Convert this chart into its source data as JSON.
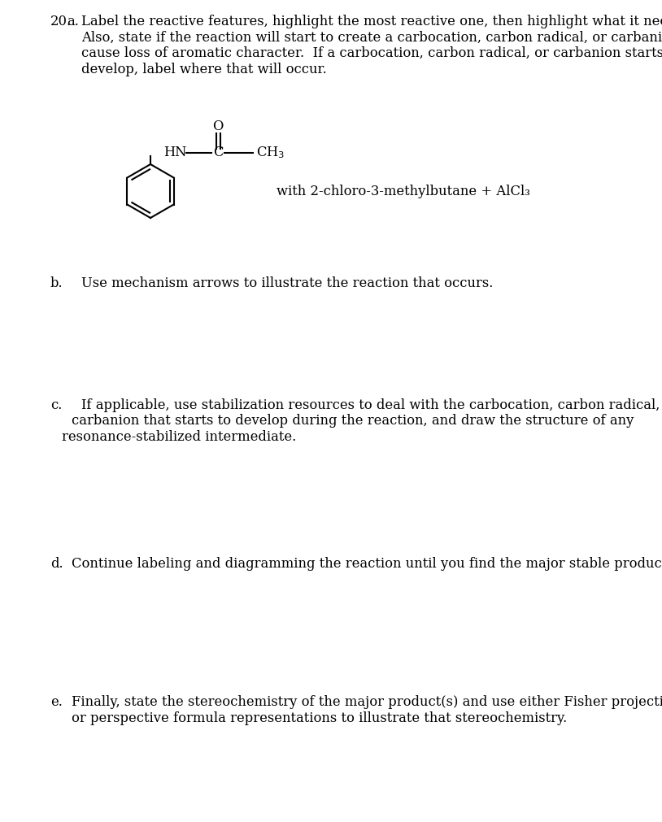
{
  "bg_color": "#ffffff",
  "text_color": "#000000",
  "part_a_line1": "Label the reactive features, highlight the most reactive one, then highlight what it needs.",
  "part_a_line2": "Also, state if the reaction will start to create a carbocation, carbon radical, or carbanion, or will",
  "part_a_line3": "cause loss of aromatic character.  If a carbocation, carbon radical, or carbanion starts to",
  "part_a_line4": "develop, label where that will occur.",
  "reagent_text": "with 2-chloro-3-methylbutane + AlCl₃",
  "part_b_text": "Use mechanism arrows to illustrate the reaction that occurs.",
  "part_c_line1": "If applicable, use stabilization resources to deal with the carbocation, carbon radical, or",
  "part_c_line2": "carbanion that starts to develop during the reaction, and draw the structure of any",
  "part_c_line3": "resonance-stabilized intermediate.",
  "part_d_text": "Continue labeling and diagramming the reaction until you find the major stable product(s).",
  "part_e_line1": "Finally, state the stereochemistry of the major product(s) and use either Fisher projection",
  "part_e_line2": "or perspective formula representations to illustrate that stereochemistry.",
  "font_size": 11.8,
  "font_family": "DejaVu Serif"
}
